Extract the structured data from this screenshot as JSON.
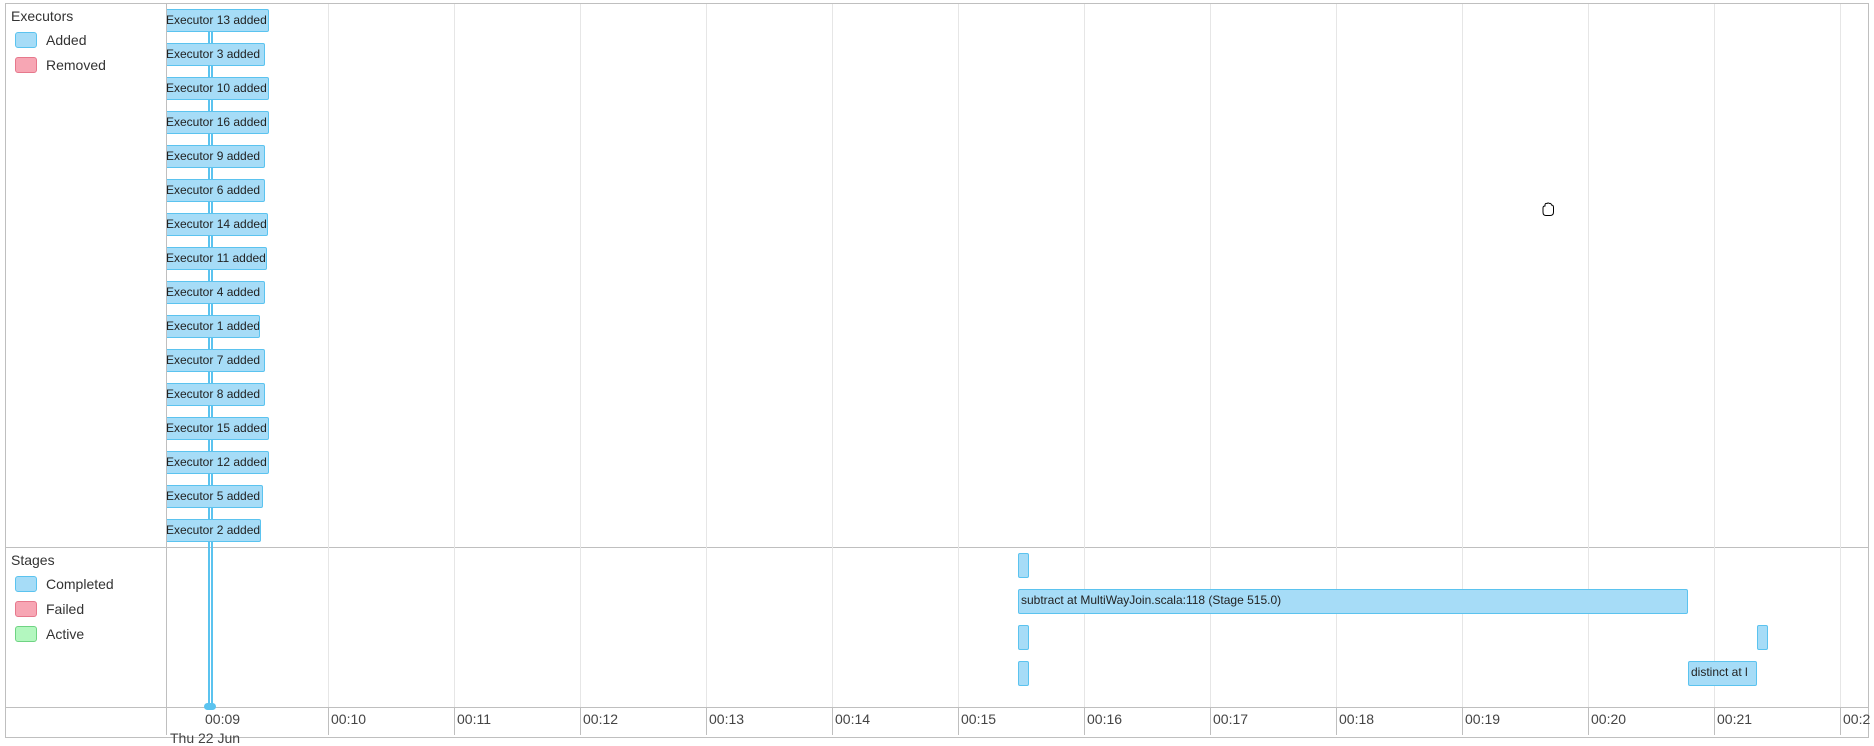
{
  "executors": {
    "title": "Executors",
    "legend": [
      {
        "label": "Added",
        "color": "#a6dcf7"
      },
      {
        "label": "Removed",
        "color": "#f7a6b4"
      }
    ],
    "events": [
      "Executor 13 added",
      "Executor 3 added",
      "Executor 10 added",
      "Executor 16 added",
      "Executor 9 added",
      "Executor 6 added",
      "Executor 14 added",
      "Executor 11 added",
      "Executor 4 added",
      "Executor 1 added",
      "Executor 7 added",
      "Executor 8 added",
      "Executor 15 added",
      "Executor 12 added",
      "Executor 5 added",
      "Executor 2 added"
    ]
  },
  "stages": {
    "title": "Stages",
    "legend": [
      {
        "label": "Completed",
        "color": "#a6dcf7"
      },
      {
        "label": "Failed",
        "color": "#f7a6b4"
      },
      {
        "label": "Active",
        "color": "#b3f7bf"
      }
    ],
    "items": [
      {
        "label": "subtract at MultiWayJoin.scala:118 (Stage 515.0)"
      },
      {
        "label": "distinct at l"
      }
    ]
  },
  "axis": {
    "ticks": [
      "00:09",
      "00:10",
      "00:11",
      "00:12",
      "00:13",
      "00:14",
      "00:15",
      "00:16",
      "00:17",
      "00:18",
      "00:19",
      "00:20",
      "00:21",
      "00:2"
    ],
    "date_label": "Thu 22 Jun"
  }
}
